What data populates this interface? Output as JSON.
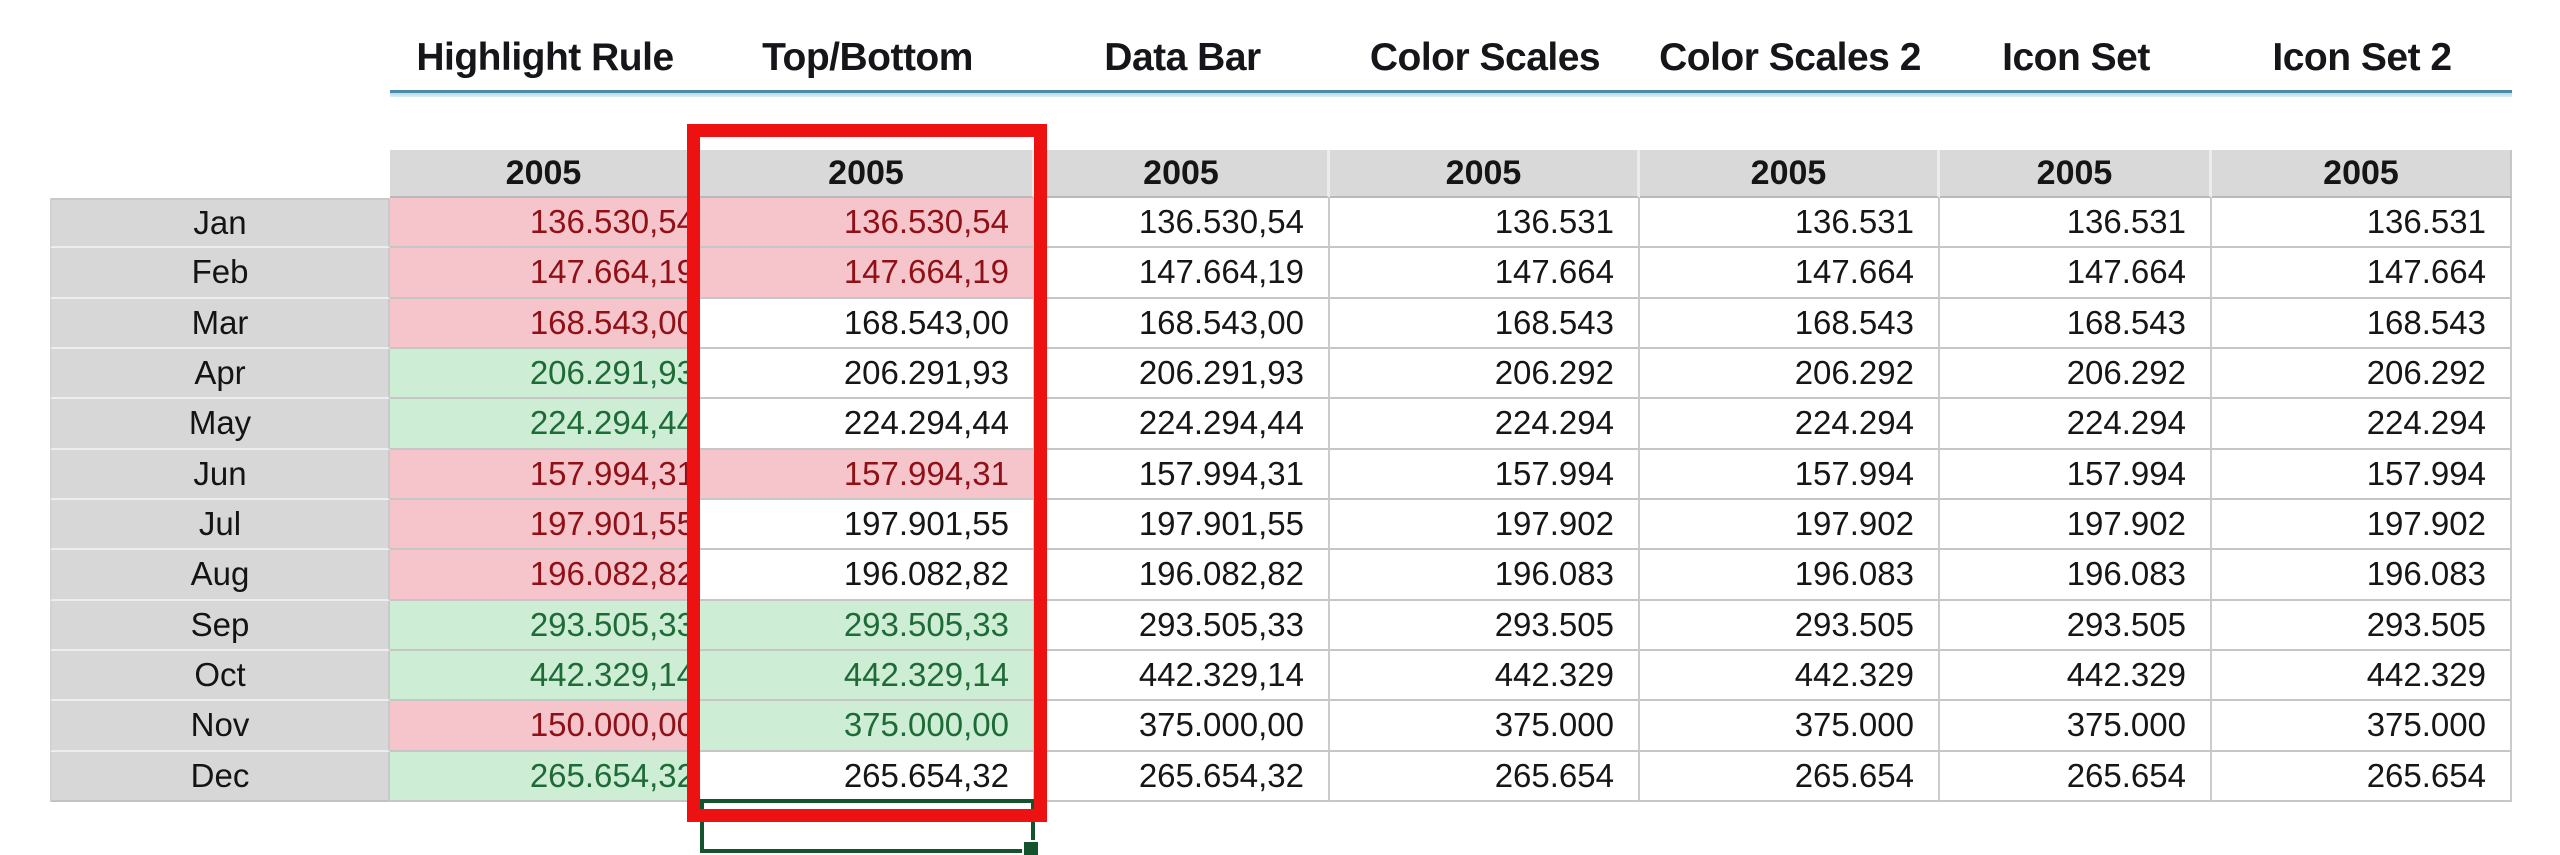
{
  "sheet": {
    "year_header": "2005",
    "months": [
      "Jan",
      "Feb",
      "Mar",
      "Apr",
      "May",
      "Jun",
      "Jul",
      "Aug",
      "Sep",
      "Oct",
      "Nov",
      "Dec"
    ],
    "column_groups": [
      {
        "title": "Highlight Rule",
        "values": [
          "136.530,54",
          "147.664,19",
          "168.543,00",
          "206.291,93",
          "224.294,44",
          "157.994,31",
          "197.901,55",
          "196.082,82",
          "293.505,33",
          "442.329,14",
          "150.000,00",
          "265.654,32"
        ],
        "fills": [
          "red",
          "red",
          "red",
          "green",
          "green",
          "red",
          "red",
          "red",
          "green",
          "green",
          "red",
          "green"
        ]
      },
      {
        "title": "Top/Bottom",
        "values": [
          "136.530,54",
          "147.664,19",
          "168.543,00",
          "206.291,93",
          "224.294,44",
          "157.994,31",
          "197.901,55",
          "196.082,82",
          "293.505,33",
          "442.329,14",
          "375.000,00",
          "265.654,32"
        ],
        "fills": [
          "red",
          "red",
          "none",
          "none",
          "none",
          "red",
          "none",
          "none",
          "green",
          "green",
          "green",
          "none"
        ]
      },
      {
        "title": "Data Bar",
        "values": [
          "136.530,54",
          "147.664,19",
          "168.543,00",
          "206.291,93",
          "224.294,44",
          "157.994,31",
          "197.901,55",
          "196.082,82",
          "293.505,33",
          "442.329,14",
          "375.000,00",
          "265.654,32"
        ],
        "fills": [
          "none",
          "none",
          "none",
          "none",
          "none",
          "none",
          "none",
          "none",
          "none",
          "none",
          "none",
          "none"
        ]
      },
      {
        "title": "Color Scales",
        "values": [
          "136.531",
          "147.664",
          "168.543",
          "206.292",
          "224.294",
          "157.994",
          "197.902",
          "196.083",
          "293.505",
          "442.329",
          "375.000",
          "265.654"
        ],
        "fills": [
          "none",
          "none",
          "none",
          "none",
          "none",
          "none",
          "none",
          "none",
          "none",
          "none",
          "none",
          "none"
        ]
      },
      {
        "title": "Color Scales 2",
        "values": [
          "136.531",
          "147.664",
          "168.543",
          "206.292",
          "224.294",
          "157.994",
          "197.902",
          "196.083",
          "293.505",
          "442.329",
          "375.000",
          "265.654"
        ],
        "fills": [
          "none",
          "none",
          "none",
          "none",
          "none",
          "none",
          "none",
          "none",
          "none",
          "none",
          "none",
          "none"
        ]
      },
      {
        "title": "Icon Set",
        "values": [
          "136.531",
          "147.664",
          "168.543",
          "206.292",
          "224.294",
          "157.994",
          "197.902",
          "196.083",
          "293.505",
          "442.329",
          "375.000",
          "265.654"
        ],
        "fills": [
          "none",
          "none",
          "none",
          "none",
          "none",
          "none",
          "none",
          "none",
          "none",
          "none",
          "none",
          "none"
        ]
      },
      {
        "title": "Icon Set 2",
        "values": [
          "136.531",
          "147.664",
          "168.543",
          "206.292",
          "224.294",
          "157.994",
          "197.902",
          "196.083",
          "293.505",
          "442.329",
          "375.000",
          "265.654"
        ],
        "fills": [
          "none",
          "none",
          "none",
          "none",
          "none",
          "none",
          "none",
          "none",
          "none",
          "none",
          "none",
          "none"
        ]
      }
    ]
  },
  "colors": {
    "red_fill": "#f6c5cc",
    "red_text": "#8f1016",
    "green_fill": "#cdeed4",
    "green_text": "#1f6b38",
    "header_band_gray": "#d9d9d9",
    "row_label_gray": "#d7d7d7",
    "annotation_red": "#ee1111",
    "selection_green": "#14532d",
    "underline_blue": "#4d8aa5"
  }
}
